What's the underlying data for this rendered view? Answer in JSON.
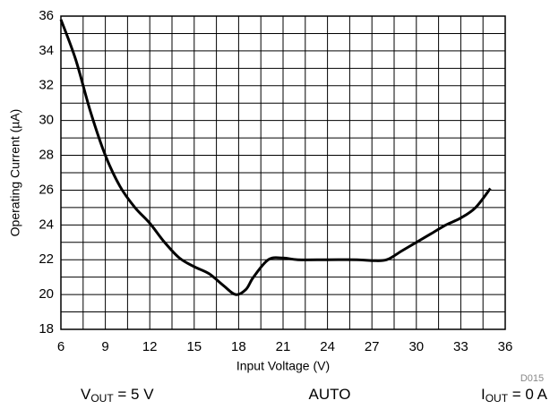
{
  "chart_data": {
    "type": "line",
    "x_label": "Input Voltage (V)",
    "y_label": "Operating Current (µA)",
    "x": [
      6,
      7,
      8,
      9,
      10,
      11,
      12,
      13,
      14,
      15,
      16,
      17,
      17.8,
      18.5,
      19,
      20,
      21,
      22,
      24,
      26,
      27,
      28,
      29,
      30,
      31,
      32,
      33,
      34,
      35
    ],
    "series": [
      {
        "color": "#000000",
        "values": [
          35.8,
          33.5,
          30.5,
          28,
          26.2,
          25,
          24.1,
          23,
          22.1,
          21.6,
          21.2,
          20.5,
          20,
          20.3,
          21,
          22,
          22.1,
          22,
          22,
          22,
          21.95,
          22,
          22.5,
          23,
          23.5,
          24,
          24.4,
          25,
          26.1
        ]
      }
    ],
    "xlim": [
      6,
      36
    ],
    "xticks": [
      6,
      9,
      12,
      15,
      18,
      21,
      24,
      27,
      30,
      33,
      36
    ],
    "xminor_ticks": [
      7.5,
      10.5,
      13.5,
      16.5,
      19.5,
      22.5,
      25.5,
      28.5,
      31.5,
      34.5
    ],
    "ylim": [
      18,
      36
    ],
    "yticks": [
      18,
      20,
      22,
      24,
      26,
      28,
      30,
      32,
      34,
      36
    ],
    "yminor_ticks": [
      19,
      21,
      23,
      25,
      27,
      29,
      31,
      33,
      35
    ],
    "grid": true,
    "figure_id": "D015",
    "conditions": [
      {
        "main": "V",
        "sub": "OUT",
        "rest": " = 5 V"
      },
      {
        "main": "AUTO"
      },
      {
        "main": "I",
        "sub": "OUT",
        "rest": " = 0 A"
      }
    ]
  }
}
